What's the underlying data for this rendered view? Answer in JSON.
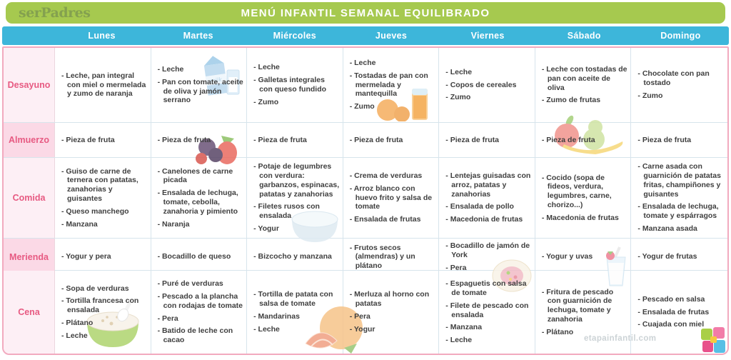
{
  "brand": {
    "logo_text": "serPadres",
    "watermark": "etapainfantil.com"
  },
  "title": "MENÚ INFANTIL SEMANAL EQUILIBRADO",
  "days": [
    "Lunes",
    "Martes",
    "Miércoles",
    "Jueves",
    "Viernes",
    "Sábado",
    "Domingo"
  ],
  "rows": [
    {
      "label": "Desayuno",
      "cells": [
        [
          "- Leche, pan integral con miel o mermelada y zumo de naranja"
        ],
        [
          "- Leche",
          "- Pan con tomate, aceite de oliva y jamón serrano"
        ],
        [
          "- Leche",
          "- Galletas integrales con queso fundido",
          "- Zumo"
        ],
        [
          "- Leche",
          "- Tostadas de pan con mermelada y mantequilla",
          "- Zumo"
        ],
        [
          "- Leche",
          "- Copos de cereales",
          "- Zumo"
        ],
        [
          "- Leche con tostadas de pan con aceite de oliva",
          "- Zumo de frutas"
        ],
        [
          "- Chocolate con pan tostado",
          "- Zumo"
        ]
      ]
    },
    {
      "label": "Almuerzo",
      "cells": [
        [
          "- Pieza de fruta"
        ],
        [
          "- Pieza de fruta"
        ],
        [
          "- Pieza de fruta"
        ],
        [
          "- Pieza de fruta"
        ],
        [
          "- Pieza de fruta"
        ],
        [
          "- Pieza de fruta"
        ],
        [
          "- Pieza de fruta"
        ]
      ]
    },
    {
      "label": "Comida",
      "cells": [
        [
          "- Guiso de carne de ternera con patatas, zanahorias y guisantes",
          "- Queso manchego",
          "- Manzana"
        ],
        [
          "- Canelones de carne picada",
          "- Ensalada de lechuga, tomate, cebolla, zanahoria y pimiento",
          "- Naranja"
        ],
        [
          "- Potaje de legumbres con verdura: garbanzos, espinacas, patatas y zanahorias",
          "- Filetes rusos con ensalada",
          "- Yogur"
        ],
        [
          "- Crema de verduras",
          "- Arroz blanco con huevo frito y salsa de tomate",
          "- Ensalada de frutas"
        ],
        [
          "- Lentejas guisadas con arroz, patatas y zanahorias",
          "- Ensalada de pollo",
          "- Macedonia de frutas"
        ],
        [
          "- Cocido (sopa de fideos, verdura, legumbres, carne, chorizo...)",
          "- Macedonia de frutas"
        ],
        [
          "- Carne asada con guarnición de patatas fritas, champiñones y guisantes",
          "- Ensalada de lechuga, tomate y espárragos",
          "- Manzana asada"
        ]
      ]
    },
    {
      "label": "Merienda",
      "cells": [
        [
          "- Yogur y pera"
        ],
        [
          "- Bocadillo de queso"
        ],
        [
          "- Bizcocho y manzana"
        ],
        [
          "- Frutos secos (almendras) y un plátano"
        ],
        [
          "- Bocadillo de jamón de York",
          "- Pera"
        ],
        [
          "- Yogur y uvas"
        ],
        [
          "- Yogur de frutas"
        ]
      ]
    },
    {
      "label": "Cena",
      "cells": [
        [
          "- Sopa de verduras",
          "- Tortilla francesa con ensalada",
          "- Plátano",
          "- Leche"
        ],
        [
          "- Puré de verduras",
          "- Pescado a la plancha con rodajas de tomate",
          "- Pera",
          "- Batido de leche con cacao"
        ],
        [
          "- Tortilla de patata con salsa de tomate",
          "- Mandarinas",
          "- Leche"
        ],
        [
          "- Merluza al horno con patatas",
          "- Pera",
          "- Yogur"
        ],
        [
          "- Espaguetis con salsa de tomate",
          "- Filete de pescado con ensalada",
          "- Manzana",
          "- Leche"
        ],
        [
          "- Fritura de pescado con guarnición de lechuga, tomate y zanahoria",
          "- Plátano"
        ],
        [
          "- Pescado en salsa",
          "- Ensalada de frutas",
          "- Cuajada con miel"
        ]
      ]
    }
  ],
  "icons": [
    "milk-carton-icon",
    "orange-juice-icon",
    "berries-icon",
    "fruits-icon",
    "soup-bowl-icon",
    "dessert-plate-icon",
    "milkshake-icon",
    "porridge-bowl-icon",
    "mandarin-icon",
    "puzzle-logo-icon"
  ],
  "colors": {
    "header_green": "#a6c94f",
    "day_row_blue": "#3db6da",
    "label_text_pink": "#e75a82",
    "label_bg_light": "#fdeff5",
    "label_bg_dark": "#fbd9e6",
    "outer_border_pink": "#f2aabf",
    "grid_border": "#d7e4ec",
    "cell_text": "#3f3f3f",
    "watermark_gray": "#ccd3d6"
  }
}
